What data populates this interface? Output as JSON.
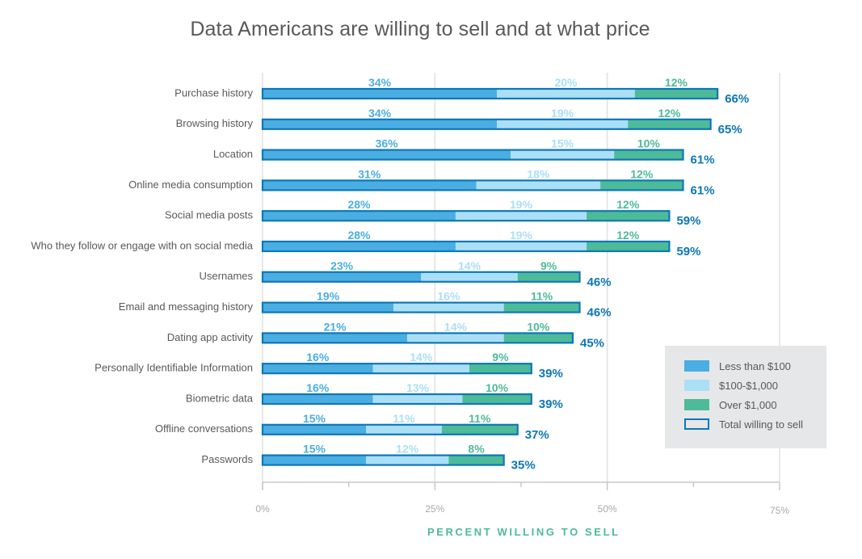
{
  "colors": {
    "low": "#4aaee2",
    "mid": "#abdff6",
    "high": "#4dbb98",
    "total_border": "#0d77b8",
    "low_label": "#4aaee2",
    "mid_label": "#abdff6",
    "high_label": "#4dbb98",
    "total_label": "#0d77b8",
    "grid": "#e1e1e1",
    "axis": "#c8c8c8"
  },
  "chart_data": {
    "type": "bar",
    "orientation": "horizontal",
    "stacked": true,
    "title": "Data Americans are willing to sell and at what price",
    "xlabel": "PERCENT WILLING TO SELL",
    "ylabel": "",
    "xlim": [
      0,
      75
    ],
    "xticks": [
      0,
      25,
      50,
      75
    ],
    "xtick_labels": [
      "0%",
      "25%",
      "50%",
      "75%"
    ],
    "grid": true,
    "legend_position": "bottom-right",
    "categories": [
      "Purchase history",
      "Browsing history",
      "Location",
      "Online media consumption",
      "Social media posts",
      "Who they follow or engage with on social media",
      "Usernames",
      "Email and messaging history",
      "Dating app activity",
      "Personally Identifiable Information",
      "Biometric data",
      "Offline conversations",
      "Passwords"
    ],
    "series": [
      {
        "name": "Less than $100",
        "key": "low",
        "values": [
          34,
          34,
          36,
          31,
          28,
          28,
          23,
          19,
          21,
          16,
          16,
          15,
          15
        ]
      },
      {
        "name": "$100-$1,000",
        "key": "mid",
        "values": [
          20,
          19,
          15,
          18,
          19,
          19,
          14,
          16,
          14,
          14,
          13,
          11,
          12
        ]
      },
      {
        "name": "Over $1,000",
        "key": "high",
        "values": [
          12,
          12,
          10,
          12,
          12,
          12,
          9,
          11,
          10,
          9,
          10,
          11,
          8
        ]
      }
    ],
    "totals": {
      "name": "Total willing to sell",
      "values": [
        66,
        65,
        61,
        61,
        59,
        59,
        46,
        46,
        45,
        39,
        39,
        37,
        35
      ]
    }
  }
}
